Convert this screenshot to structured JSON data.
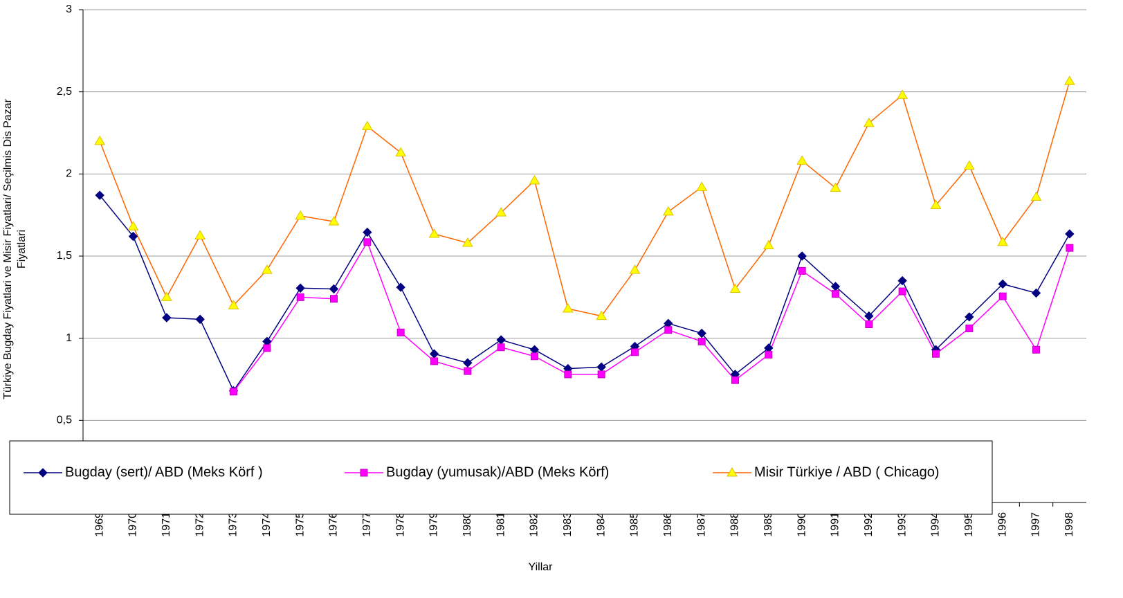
{
  "chart_data": {
    "type": "line",
    "y_label": [
      "Türkiye Bugday Fiyatlari ve Misir Fiyatlari/ Seçilmis Dis Pazar",
      "Fiyatlari"
    ],
    "x_label": "Yillar",
    "categories": [
      "1969",
      "1970",
      "1971",
      "1972",
      "1973",
      "1974",
      "1975",
      "1976",
      "1977",
      "1978",
      "1979",
      "1980",
      "1981",
      "1982",
      "1983",
      "1984",
      "1985",
      "1986",
      "1987",
      "1988",
      "1989",
      "1990",
      "1991",
      "1992",
      "1993",
      "1994",
      "1995",
      "1996",
      "1997",
      "1998"
    ],
    "series": [
      {
        "name": "Bugday (sert)/ ABD (Meks Körf )",
        "color": "#000080",
        "marker": "diamond",
        "marker_color": "#000080",
        "values": [
          1.87,
          1.62,
          1.125,
          1.115,
          0.68,
          0.98,
          1.305,
          1.3,
          1.645,
          1.31,
          0.905,
          0.85,
          0.99,
          0.93,
          0.815,
          0.825,
          0.95,
          1.09,
          1.03,
          0.78,
          0.94,
          1.5,
          1.315,
          1.135,
          1.35,
          0.93,
          1.13,
          1.33,
          1.275,
          1.635
        ]
      },
      {
        "name": "Bugday (yumusak)/ABD (Meks Körf)",
        "color": "#ff00ff",
        "marker": "square",
        "marker_color": "#ff00ff",
        "values": [
          null,
          null,
          null,
          null,
          0.675,
          0.94,
          1.25,
          1.24,
          1.585,
          1.035,
          0.86,
          0.8,
          0.945,
          0.89,
          0.78,
          0.78,
          0.915,
          1.05,
          0.98,
          0.745,
          0.9,
          1.41,
          1.27,
          1.085,
          1.285,
          0.905,
          1.06,
          1.255,
          0.93,
          1.55
        ]
      },
      {
        "name": "Misir Türkiye / ABD ( Chicago)",
        "color": "#ff6600",
        "marker": "triangle",
        "marker_color": "#ffff00",
        "values": [
          2.2,
          1.68,
          1.25,
          1.625,
          1.2,
          1.415,
          1.745,
          1.71,
          2.29,
          2.13,
          1.635,
          1.58,
          1.765,
          1.96,
          1.18,
          1.135,
          1.415,
          1.77,
          1.92,
          1.3,
          1.565,
          2.08,
          1.915,
          2.31,
          2.48,
          1.81,
          2.05,
          1.585,
          1.86,
          2.565
        ]
      }
    ],
    "ylim": [
      0,
      3
    ],
    "yticks": [
      0,
      {
        "value": 0.5,
        "label": "0,5"
      },
      1,
      {
        "value": 1.5,
        "label": "1,5"
      },
      2,
      {
        "value": 2.5,
        "label": "2,5"
      },
      3
    ],
    "grid": true,
    "legend": "bottom"
  }
}
